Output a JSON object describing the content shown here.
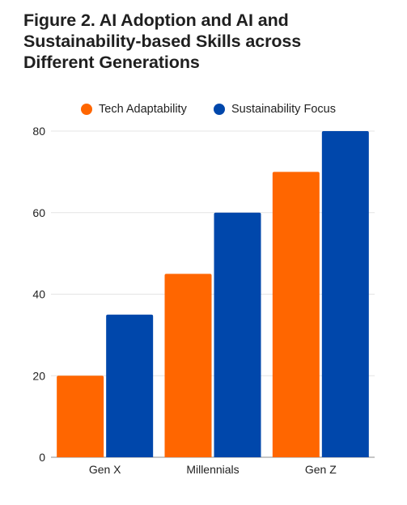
{
  "chart_data": {
    "type": "bar",
    "title_lines": [
      "Figure 2. AI Adoption and AI and",
      "Sustainability-based Skills across",
      "Different Generations"
    ],
    "categories": [
      "Gen X",
      "Millennials",
      "Gen Z"
    ],
    "series": [
      {
        "name": "Tech Adaptability",
        "color": "#ff6600",
        "values": [
          20,
          45,
          70
        ]
      },
      {
        "name": "Sustainability Focus",
        "color": "#0047ab",
        "values": [
          35,
          60,
          80
        ]
      }
    ],
    "yticks": [
      0,
      20,
      40,
      60,
      80
    ],
    "ylim": [
      0,
      80
    ],
    "xlabel": "",
    "ylabel": "",
    "grid": true,
    "legend_position": "top-center"
  }
}
